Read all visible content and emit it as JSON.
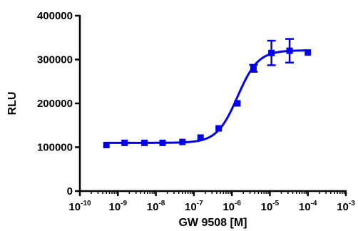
{
  "chart_data": {
    "type": "scatter",
    "title": "",
    "xlabel": "GW 9508 [M]",
    "ylabel": "RLU",
    "x_scale": "log10",
    "xlim": [
      1e-10,
      0.001
    ],
    "ylim": [
      0,
      400000
    ],
    "x_ticks": [
      {
        "base": "10",
        "exp": "-10"
      },
      {
        "base": "10",
        "exp": "-9"
      },
      {
        "base": "10",
        "exp": "-8"
      },
      {
        "base": "10",
        "exp": "-7"
      },
      {
        "base": "10",
        "exp": "-6"
      },
      {
        "base": "10",
        "exp": "-5"
      },
      {
        "base": "10",
        "exp": "-4"
      },
      {
        "base": "10",
        "exp": "-3"
      }
    ],
    "y_ticks": [
      "0",
      "100000",
      "200000",
      "300000",
      "400000"
    ],
    "color": "#0000ee",
    "series": [
      {
        "points": [
          {
            "x": 5e-10,
            "y": 105000,
            "err": 0
          },
          {
            "x": 1.5e-09,
            "y": 110000,
            "err": 0
          },
          {
            "x": 5e-09,
            "y": 110000,
            "err": 0
          },
          {
            "x": 1.5e-08,
            "y": 110000,
            "err": 0
          },
          {
            "x": 5e-08,
            "y": 112000,
            "err": 0
          },
          {
            "x": 1.5e-07,
            "y": 122000,
            "err": 0
          },
          {
            "x": 4.5e-07,
            "y": 143000,
            "err": 0
          },
          {
            "x": 1.4e-06,
            "y": 200000,
            "err": 0
          },
          {
            "x": 3.7e-06,
            "y": 280000,
            "err": 8000
          },
          {
            "x": 1.1e-05,
            "y": 315000,
            "err": 28000
          },
          {
            "x": 3.3e-05,
            "y": 320000,
            "err": 27000
          },
          {
            "x": 0.0001,
            "y": 316000,
            "err": 0
          }
        ],
        "fit": {
          "bottom": 110000,
          "top": 321000,
          "logEC50": -5.85,
          "hill": 1.6,
          "from": 5e-10,
          "to": 0.0001
        }
      }
    ]
  }
}
